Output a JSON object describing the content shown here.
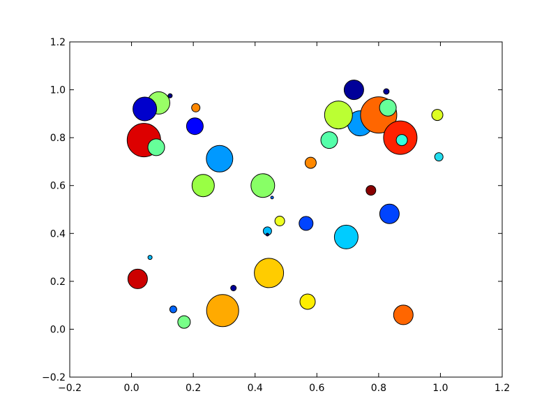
{
  "chart_data": {
    "type": "scatter",
    "title": "",
    "xlabel": "",
    "ylabel": "",
    "xlim": [
      -0.2,
      1.2
    ],
    "ylim": [
      -0.2,
      1.2
    ],
    "grid": false,
    "x_ticks": [
      "−0.2",
      "0.0",
      "0.2",
      "0.4",
      "0.6",
      "0.8",
      "1.0",
      "1.2"
    ],
    "y_ticks": [
      "−0.2",
      "0.0",
      "0.2",
      "0.4",
      "0.6",
      "0.8",
      "1.0",
      "1.2"
    ],
    "points": [
      {
        "x": 0.04,
        "y": 0.79,
        "r": 24,
        "color": "#dd0000"
      },
      {
        "x": 0.088,
        "y": 0.945,
        "r": 16,
        "color": "#99ff66"
      },
      {
        "x": 0.043,
        "y": 0.92,
        "r": 17,
        "color": "#0000cc"
      },
      {
        "x": 0.125,
        "y": 0.975,
        "r": 3,
        "color": "#000088"
      },
      {
        "x": 0.08,
        "y": 0.76,
        "r": 12,
        "color": "#66ff99"
      },
      {
        "x": 0.208,
        "y": 0.925,
        "r": 6,
        "color": "#ff8800"
      },
      {
        "x": 0.205,
        "y": 0.848,
        "r": 12,
        "color": "#0000ff"
      },
      {
        "x": 0.285,
        "y": 0.712,
        "r": 19,
        "color": "#0099ff"
      },
      {
        "x": 0.232,
        "y": 0.6,
        "r": 16,
        "color": "#99ff44"
      },
      {
        "x": 0.425,
        "y": 0.6,
        "r": 17,
        "color": "#88ff66"
      },
      {
        "x": 0.455,
        "y": 0.55,
        "r": 2,
        "color": "#0066ff"
      },
      {
        "x": 0.58,
        "y": 0.695,
        "r": 8,
        "color": "#ff8800"
      },
      {
        "x": 0.48,
        "y": 0.452,
        "r": 7,
        "color": "#eeff22"
      },
      {
        "x": 0.44,
        "y": 0.41,
        "r": 6,
        "color": "#00bbff"
      },
      {
        "x": 0.44,
        "y": 0.395,
        "r": 2,
        "color": "#000066"
      },
      {
        "x": 0.565,
        "y": 0.442,
        "r": 10,
        "color": "#0044ff"
      },
      {
        "x": 0.695,
        "y": 0.385,
        "r": 17,
        "color": "#00ccff"
      },
      {
        "x": 0.775,
        "y": 0.58,
        "r": 7,
        "color": "#880000"
      },
      {
        "x": 0.835,
        "y": 0.482,
        "r": 14,
        "color": "#0044ff"
      },
      {
        "x": 0.72,
        "y": 1.0,
        "r": 14,
        "color": "#000099"
      },
      {
        "x": 0.825,
        "y": 0.993,
        "r": 4,
        "color": "#000099"
      },
      {
        "x": 0.74,
        "y": 0.86,
        "r": 18,
        "color": "#0099ff"
      },
      {
        "x": 0.67,
        "y": 0.895,
        "r": 20,
        "color": "#bbff33"
      },
      {
        "x": 0.8,
        "y": 0.895,
        "r": 26,
        "color": "#ff6600"
      },
      {
        "x": 0.83,
        "y": 0.925,
        "r": 12,
        "color": "#66ff99"
      },
      {
        "x": 0.64,
        "y": 0.79,
        "r": 12,
        "color": "#55ffaa"
      },
      {
        "x": 0.87,
        "y": 0.8,
        "r": 24,
        "color": "#ff2200"
      },
      {
        "x": 0.875,
        "y": 0.79,
        "r": 8,
        "color": "#33ffdd"
      },
      {
        "x": 0.99,
        "y": 0.895,
        "r": 8,
        "color": "#ddff22"
      },
      {
        "x": 0.995,
        "y": 0.72,
        "r": 6,
        "color": "#22ddee"
      },
      {
        "x": 0.06,
        "y": 0.3,
        "r": 3,
        "color": "#00bbff"
      },
      {
        "x": 0.02,
        "y": 0.21,
        "r": 14,
        "color": "#cc0000"
      },
      {
        "x": 0.135,
        "y": 0.083,
        "r": 5,
        "color": "#0066ff"
      },
      {
        "x": 0.17,
        "y": 0.03,
        "r": 9,
        "color": "#77ff88"
      },
      {
        "x": 0.295,
        "y": 0.078,
        "r": 23,
        "color": "#ffaa00"
      },
      {
        "x": 0.33,
        "y": 0.172,
        "r": 4,
        "color": "#000099"
      },
      {
        "x": 0.445,
        "y": 0.235,
        "r": 21,
        "color": "#ffcc00"
      },
      {
        "x": 0.57,
        "y": 0.115,
        "r": 11,
        "color": "#ffee00"
      },
      {
        "x": 0.88,
        "y": 0.06,
        "r": 14,
        "color": "#ff6600"
      }
    ]
  }
}
